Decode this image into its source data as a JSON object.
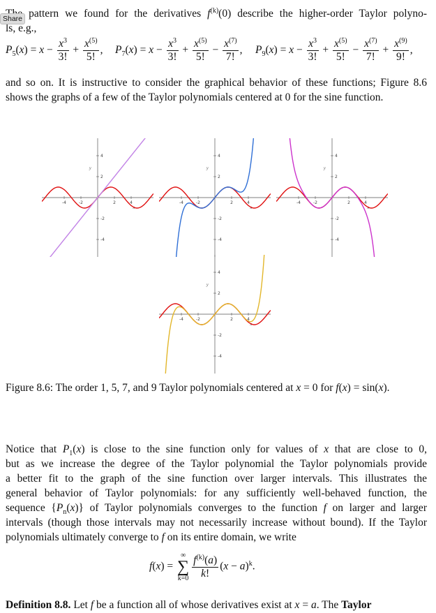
{
  "share_button": "Share",
  "intro": [
    [
      "The pattern we found for the derivatives ",
      {
        "m": "f",
        "sup": "(k)"
      },
      "(0) describe the higher-order Taylor polyno-"
    ],
    [
      "ls, e.g.,"
    ]
  ],
  "taylor_polynomials": [
    [
      {
        "m": "P",
        "sub": "5"
      },
      "(",
      {
        "m": "x"
      },
      ") = ",
      {
        "m": "x"
      },
      " − ",
      {
        "frac": {
          "num": [
            {
              "m": "x",
              "sup": "3"
            }
          ],
          "den": [
            "3!"
          ]
        }
      },
      " + ",
      {
        "frac": {
          "num": [
            {
              "m": "x",
              "sup": "(5)"
            }
          ],
          "den": [
            "5!"
          ]
        }
      },
      ","
    ],
    [
      {
        "m": "P",
        "sub": "7"
      },
      "(",
      {
        "m": "x"
      },
      ") = ",
      {
        "m": "x"
      },
      " − ",
      {
        "frac": {
          "num": [
            {
              "m": "x",
              "sup": "3"
            }
          ],
          "den": [
            "3!"
          ]
        }
      },
      " + ",
      {
        "frac": {
          "num": [
            {
              "m": "x",
              "sup": "(5)"
            }
          ],
          "den": [
            "5!"
          ]
        }
      },
      " − ",
      {
        "frac": {
          "num": [
            {
              "m": "x",
              "sup": "(7)"
            }
          ],
          "den": [
            "7!"
          ]
        }
      },
      ","
    ],
    [
      {
        "m": "P",
        "sub": "9"
      },
      "(",
      {
        "m": "x"
      },
      ") = ",
      {
        "m": "x"
      },
      " − ",
      {
        "frac": {
          "num": [
            {
              "m": "x",
              "sup": "3"
            }
          ],
          "den": [
            "3!"
          ]
        }
      },
      " + ",
      {
        "frac": {
          "num": [
            {
              "m": "x",
              "sup": "(5)"
            }
          ],
          "den": [
            "5!"
          ]
        }
      },
      " − ",
      {
        "frac": {
          "num": [
            {
              "m": "x",
              "sup": "(7)"
            }
          ],
          "den": [
            "7!"
          ]
        }
      },
      " + ",
      {
        "frac": {
          "num": [
            {
              "m": "x",
              "sup": "(9)"
            }
          ],
          "den": [
            "9!"
          ]
        }
      },
      ","
    ]
  ],
  "paragraph_2": [
    [
      "and so on. It is instructive to consider the graphical behavior of these functions; Figure 8.6"
    ],
    [
      "shows the graphs of a few of the Taylor polynomials centered at 0 for the sine function."
    ]
  ],
  "figure": {
    "ticks": [
      -4,
      -2,
      2,
      4
    ],
    "axis_x": "x",
    "axis_y": "y",
    "function_color": "#e01010",
    "plots": [
      {
        "order": 1,
        "color": "#c283e6"
      },
      {
        "order": 5,
        "color": "#2f6fd6"
      },
      {
        "order": 7,
        "color": "#cc33cc"
      },
      {
        "order": 9,
        "color": "#e2b62a"
      }
    ],
    "caption": [
      [
        "Figure 8.6: The order 1, 5, 7, and 9 Taylor polynomials centered at ",
        {
          "m": "x"
        },
        " = 0 for ",
        {
          "m": "f"
        },
        "(",
        {
          "m": "x"
        },
        ") = sin(",
        {
          "m": "x"
        },
        ")."
      ]
    ]
  },
  "paragraph_3": [
    [
      "     Notice that ",
      {
        "m": "P",
        "sub": "1"
      },
      "(",
      {
        "m": "x"
      },
      ") is close to the sine function only for values of ",
      {
        "m": "x"
      },
      " that are close to 0,"
    ],
    [
      "but as we increase the degree of the Taylor polynomial the Taylor polynomials provide"
    ],
    [
      "a better fit to the graph of the sine function over larger intervals.  This illustrates the"
    ],
    [
      "general behavior of Taylor polynomials: for any sufficiently well-behaved function, the"
    ],
    [
      "sequence {",
      {
        "m": "P",
        "sub": "n"
      },
      "(",
      {
        "m": "x"
      },
      ")} of Taylor polynomials converges to the function ",
      {
        "m": "f"
      },
      " on larger and larger"
    ],
    [
      "intervals (though those intervals may not necessarily increase without bound). If the Taylor"
    ],
    [
      "polynomials ultimately converge to ",
      {
        "m": "f"
      },
      " on its entire domain, we write"
    ]
  ],
  "series_formula": [
    {
      "m": "f"
    },
    "(",
    {
      "m": "x"
    },
    ") = ",
    {
      "sum": "∑",
      "over": "∞",
      "under": "k=0"
    },
    {
      "frac": {
        "num": [
          {
            "m": "f",
            "sup": "(k)"
          },
          "(",
          {
            "m": "a"
          },
          ")"
        ],
        "den": [
          {
            "m": "k"
          },
          "!"
        ]
      }
    },
    "(",
    {
      "m": "x"
    },
    " − ",
    {
      "m": "a"
    },
    ")",
    {
      "sup": "k"
    },
    "."
  ],
  "definition": [
    [
      {
        "b": "Definition 8.8."
      },
      " Let ",
      {
        "m": "f"
      },
      " be a function all of whose derivatives exist at ",
      {
        "m": "x"
      },
      " = ",
      {
        "m": "a"
      },
      ". The ",
      {
        "b": "Taylor"
      }
    ]
  ]
}
